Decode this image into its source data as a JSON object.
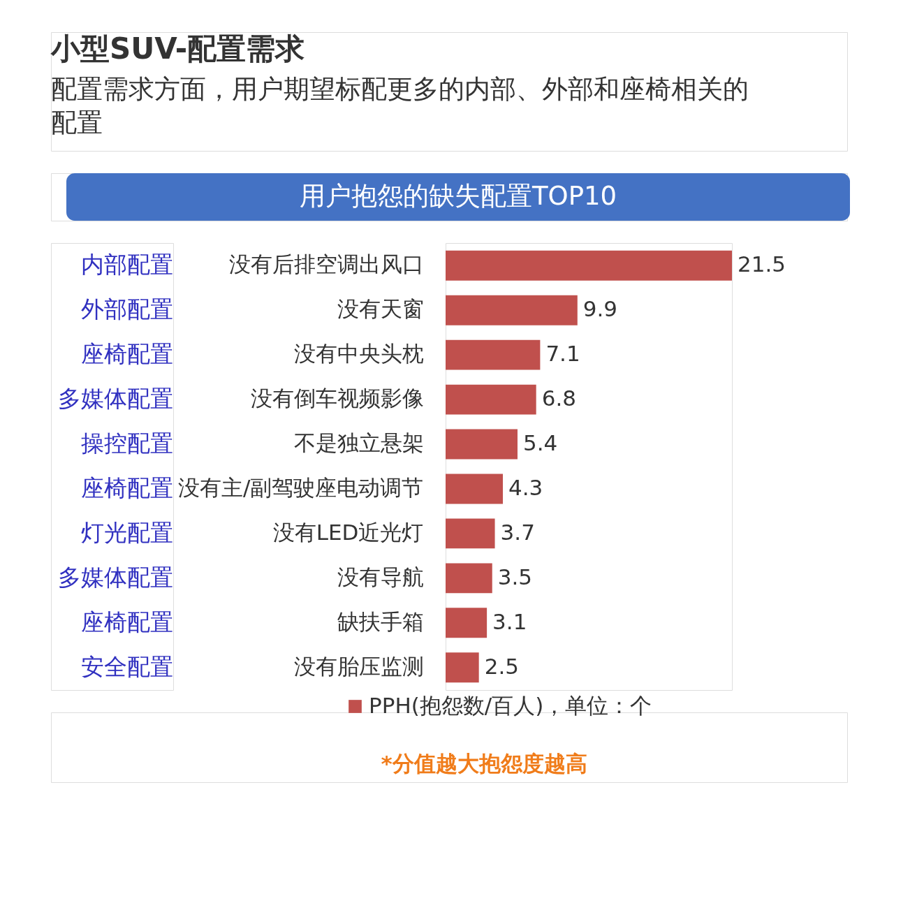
{
  "chart_data": {
    "type": "bar",
    "orientation": "horizontal",
    "title": "小型SUV-配置需求",
    "subtitle": "配置需求方面，用户期望标配更多的内部、外部和座椅相关的配置",
    "categories": [
      "没有后排空调出风口",
      "没有天窗",
      "没有中央头枕",
      "没有倒车视频影像",
      "不是独立悬架",
      "没有主/副驾驶座电动调节",
      "没有LED近光灯",
      "没有导航",
      "缺扶手箱",
      "没有胎压监测"
    ],
    "series": [
      {
        "name": "PPH(抱怨数/百人)，单位：个",
        "color": "#c0504d",
        "values": [
          21.5,
          9.9,
          7.1,
          6.8,
          5.4,
          4.3,
          3.7,
          3.5,
          3.1,
          2.5
        ]
      }
    ],
    "data_labels": true,
    "legend": "bottom",
    "grid": false,
    "tick_labels": "y",
    "annotations": [
      "用户抱怨的缺失配置TOP10",
      "*分值越大抱怨度越高",
      "内部配置",
      "外部配置",
      "座椅配置",
      "多媒体配置",
      "操控配置",
      "座椅配置",
      "灯光配置",
      "多媒体配置",
      "座椅配置",
      "安全配置"
    ]
  }
}
